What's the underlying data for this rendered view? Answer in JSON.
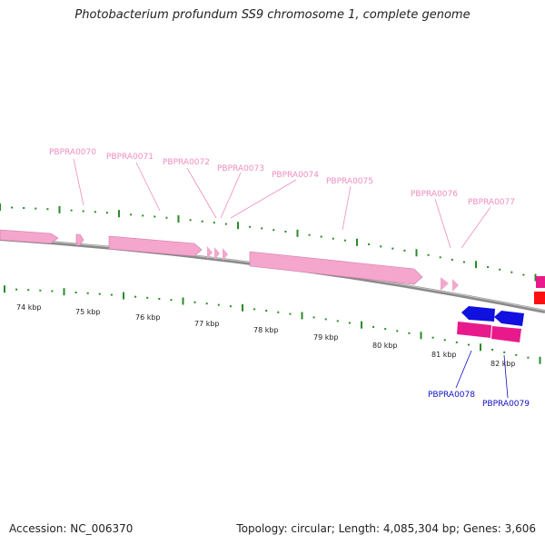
{
  "title": "Photobacterium profundum SS9 chromosome 1, complete genome",
  "accession": "Accession: NC_006370",
  "summary": "Topology: circular; Length: 4,085,304 bp; Genes: 3,606",
  "colors": {
    "pink_gene": "#f4a6cc",
    "pink_label": "#f08cc0",
    "magenta_gene": "#e8198b",
    "blue_gene": "#1010e0",
    "blue_label": "#1010c0",
    "red_gene": "#ff1010",
    "tick_green": "#2a8a2a",
    "backbone": "#8a8a8a"
  },
  "kbp_labels": [
    "74 kbp",
    "75 kbp",
    "76 kbp",
    "77 kbp",
    "78 kbp",
    "79 kbp",
    "80 kbp",
    "81 kbp",
    "82 kbp"
  ],
  "genes_top": [
    {
      "label": "PBPRA0070"
    },
    {
      "label": "PBPRA0071"
    },
    {
      "label": "PBPRA0072"
    },
    {
      "label": "PBPRA0073"
    },
    {
      "label": "PBPRA0074"
    },
    {
      "label": "PBPRA0075"
    },
    {
      "label": "PBPRA0076"
    },
    {
      "label": "PBPRA0077"
    }
  ],
  "genes_bottom": [
    {
      "label": "PBPRA0078"
    },
    {
      "label": "PBPRA0079"
    }
  ]
}
